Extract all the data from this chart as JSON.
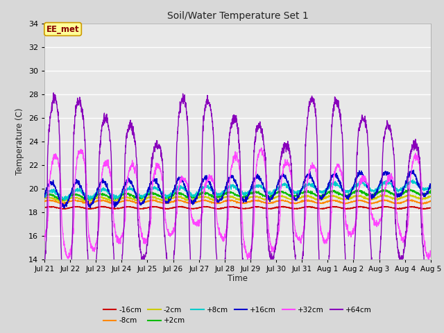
{
  "title": "Soil/Water Temperature Set 1",
  "xlabel": "Time",
  "ylabel": "Temperature (C)",
  "ylim": [
    14,
    34
  ],
  "xlim": [
    0,
    15
  ],
  "yticks": [
    14,
    16,
    18,
    20,
    22,
    24,
    26,
    28,
    30,
    32,
    34
  ],
  "xtick_labels": [
    "Jul 21",
    "Jul 22",
    "Jul 23",
    "Jul 24",
    "Jul 25",
    "Jul 26",
    "Jul 27",
    "Jul 28",
    "Jul 29",
    "Jul 30",
    "Jul 31",
    "Aug 1",
    "Aug 2",
    "Aug 3",
    "Aug 4",
    "Aug 5"
  ],
  "series_colors": {
    "-16cm": "#cc0000",
    "-8cm": "#ff8800",
    "-2cm": "#cccc00",
    "+2cm": "#00bb00",
    "+8cm": "#00cccc",
    "+16cm": "#0000cc",
    "+32cm": "#ff44ff",
    "+64cm": "#8800bb"
  },
  "background_color": "#e8e8e8",
  "grid_color": "#ffffff",
  "annotation_text": "EE_met",
  "annotation_bg": "#ffff99",
  "annotation_border": "#cc9900",
  "annotation_text_color": "#880000",
  "fig_bg": "#d8d8d8"
}
